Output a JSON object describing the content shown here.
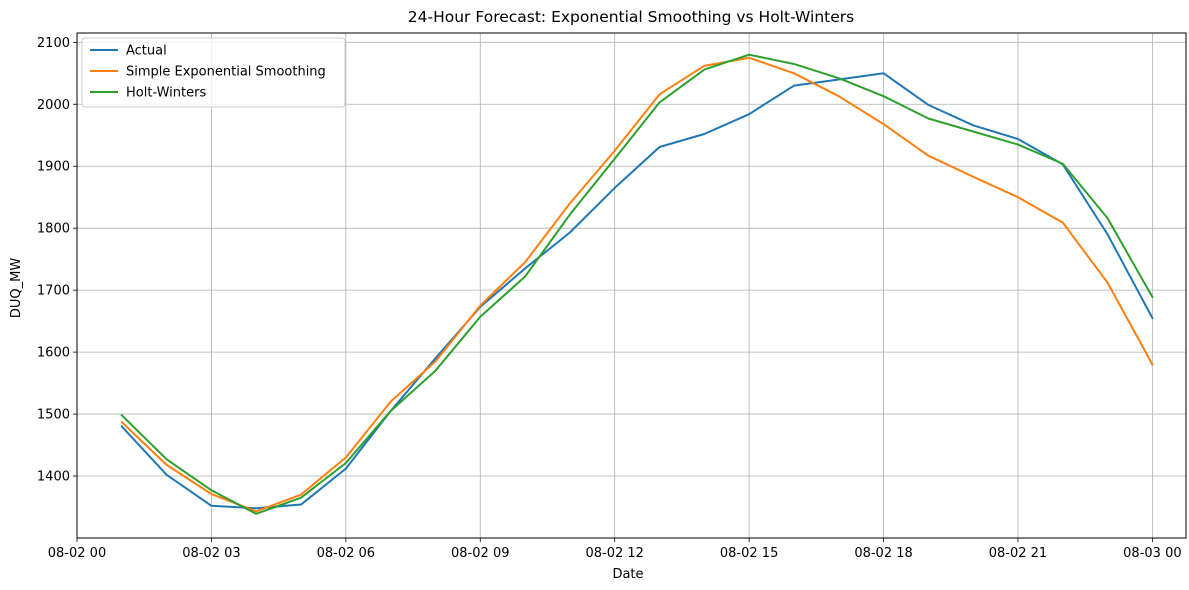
{
  "chart_data": {
    "type": "line",
    "title": "24-Hour Forecast: Exponential Smoothing vs Holt-Winters",
    "xlabel": "Date",
    "ylabel": "DUQ_MW",
    "x": [
      "08-02 01",
      "08-02 02",
      "08-02 03",
      "08-02 04",
      "08-02 05",
      "08-02 06",
      "08-02 07",
      "08-02 08",
      "08-02 09",
      "08-02 10",
      "08-02 11",
      "08-02 12",
      "08-02 13",
      "08-02 14",
      "08-02 15",
      "08-02 16",
      "08-02 17",
      "08-02 18",
      "08-02 19",
      "08-02 20",
      "08-02 21",
      "08-02 22",
      "08-02 23",
      "08-03 00"
    ],
    "xlim": [
      "08-02 00:00",
      "08-03 00:45"
    ],
    "x_ticks": [
      "08-02 00",
      "08-02 03",
      "08-02 06",
      "08-02 09",
      "08-02 12",
      "08-02 15",
      "08-02 18",
      "08-02 21",
      "08-03 00"
    ],
    "ylim": [
      1300,
      2115
    ],
    "y_ticks": [
      1400,
      1500,
      1600,
      1700,
      1800,
      1900,
      2000,
      2100
    ],
    "grid": true,
    "legend_position": "upper-left",
    "series": [
      {
        "name": "Actual",
        "color": "#1f77b4",
        "values": [
          1480,
          1402,
          1352,
          1348,
          1354,
          1412,
          1505,
          1590,
          1673,
          1735,
          1793,
          1865,
          1931,
          1952,
          1984,
          2030,
          2040,
          2050,
          1999,
          1966,
          1944,
          1903,
          1790,
          1655
        ]
      },
      {
        "name": "Simple Exponential Smoothing",
        "color": "#ff7f0e",
        "values": [
          1487,
          1418,
          1371,
          1343,
          1370,
          1430,
          1520,
          1585,
          1675,
          1745,
          1840,
          1925,
          2016,
          2062,
          2075,
          2050,
          2013,
          1968,
          1917,
          1883,
          1850,
          1809,
          1712,
          1580
        ]
      },
      {
        "name": "Holt-Winters",
        "color": "#2ca02c",
        "values": [
          1498,
          1427,
          1377,
          1339,
          1365,
          1421,
          1505,
          1570,
          1657,
          1722,
          1822,
          1912,
          2003,
          2056,
          2080,
          2065,
          2042,
          2013,
          1977,
          1956,
          1935,
          1904,
          1816,
          1689
        ]
      }
    ]
  }
}
